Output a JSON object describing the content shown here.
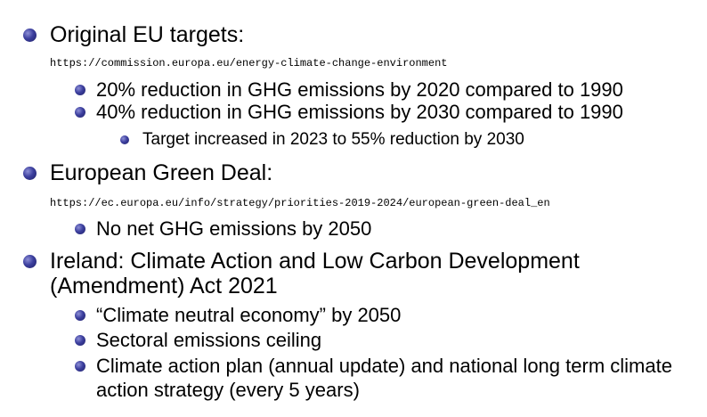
{
  "items": [
    {
      "text": "Original EU targets:",
      "url": "https://commission.europa.eu/energy-climate-change-environment",
      "subitems": [
        {
          "text": "20% reduction in GHG emissions by 2020 compared to 1990"
        },
        {
          "text": "40% reduction in GHG emissions by 2030 compared to 1990",
          "subitems": [
            {
              "text": "Target increased in 2023 to 55% reduction by 2030"
            }
          ]
        }
      ]
    },
    {
      "text": "European Green Deal:",
      "url": "https://ec.europa.eu/info/strategy/priorities-2019-2024/european-green-deal_en",
      "subitems": [
        {
          "text": "No net GHG emissions by 2050"
        }
      ]
    },
    {
      "text_line1": "Ireland: Climate Action and Low Carbon Development",
      "text_line2": "(Amendment) Act 2021",
      "subitems": [
        {
          "text": "“Climate neutral economy” by 2050"
        },
        {
          "text": "Sectoral emissions ceiling"
        },
        {
          "text_line1": "Climate action plan (annual update) and national long term climate",
          "text_line2": "action strategy (every 5 years)"
        }
      ]
    }
  ]
}
